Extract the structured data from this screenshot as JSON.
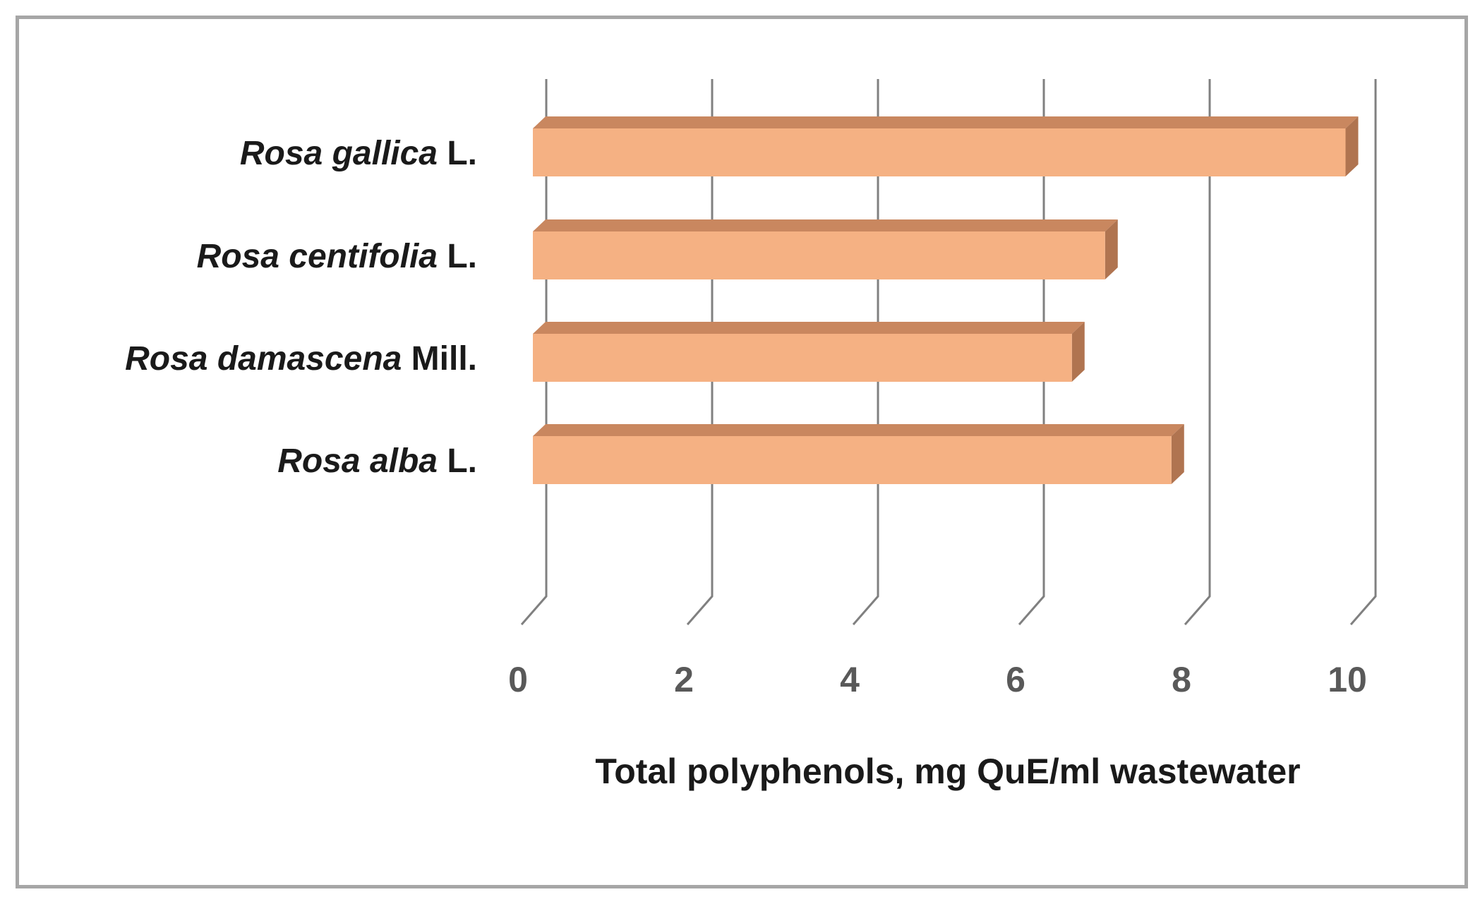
{
  "chart_data": {
    "type": "bar",
    "orientation": "horizontal",
    "three_d": true,
    "categories": [
      {
        "species": "Rosa gallica",
        "author": "L."
      },
      {
        "species": "Rosa centifolia",
        "author": "L."
      },
      {
        "species": "Rosa damascena",
        "author": "Mill."
      },
      {
        "species": "Rosa alba",
        "author": "L."
      }
    ],
    "values": [
      9.8,
      6.9,
      6.5,
      7.7
    ],
    "xlabel": "Total polyphenols, mg QuE/ml wastewater",
    "ylabel": "",
    "xlim": [
      0,
      10
    ],
    "ticks": [
      "0",
      "2",
      "4",
      "6",
      "8",
      "10"
    ],
    "grid": true,
    "colors": {
      "bar_front": "#f5b183",
      "bar_top": "#c9875f",
      "bar_side": "#b07450",
      "grid": "#808080",
      "frame": "#a6a6a6"
    }
  }
}
